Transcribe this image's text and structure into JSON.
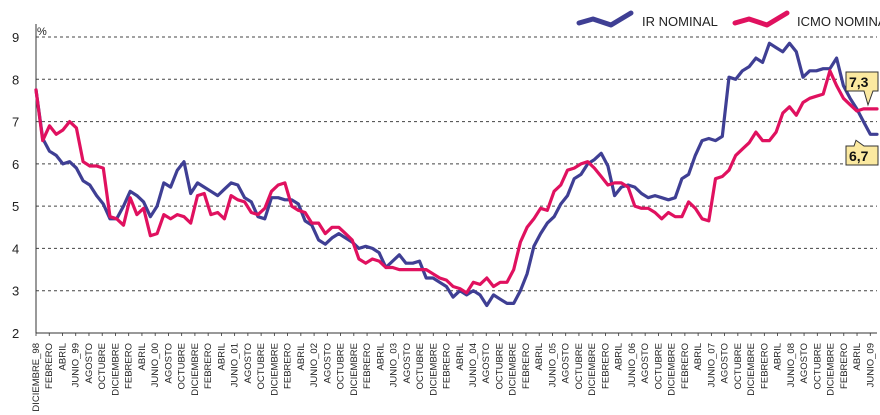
{
  "chart_data": {
    "type": "line",
    "unit_label": "%",
    "ylim": [
      2,
      9
    ],
    "y_ticks": [
      2,
      3,
      4,
      5,
      6,
      7,
      8,
      9
    ],
    "grid": true,
    "legend_position": "top-right",
    "x_tick_labels": [
      "DICIEMBRE_98",
      "FEBRERO",
      "ABRIL",
      "JUNIO_99",
      "AGOSTO",
      "OCTUBRE",
      "DICIEMBRE",
      "FEBRERO",
      "ABRIL",
      "JUNIO_00",
      "AGOSTO",
      "OCTUBRE",
      "DICIEMBRE",
      "FEBRERO",
      "ABRIL",
      "JUNIO_01",
      "AGOSTO",
      "OCTUBRE",
      "DICIEMBRE",
      "FEBRERO",
      "ABRIL",
      "JUNIO_02",
      "AGOSTO",
      "OCTUBRE",
      "DICIEMBRE",
      "FEBRERO",
      "ABRIL",
      "JUNIO_03",
      "AGOSTO",
      "OCTUBRE",
      "DICIEMBRE",
      "FEBRERO",
      "ABRIL",
      "JUNIO_04",
      "AGOSTO",
      "OCTUBRE",
      "DICIEMBRE",
      "FEBRERO",
      "ABRIL",
      "JUNIO_05",
      "AGOSTO",
      "OCTUBRE",
      "DICIEMBRE",
      "FEBRERO",
      "ABRIL",
      "JUNIO_06",
      "AGOSTO",
      "OCTUBRE",
      "DICIEMBRE",
      "FEBRERO",
      "ABRIL",
      "JUNIO_07",
      "AGOSTO",
      "OCTUBRE",
      "DICIEMBRE",
      "FEBRERO",
      "ABRIL",
      "JUNIO_08",
      "AGOSTO",
      "OCTUBRE",
      "DICIEMBRE",
      "FEBRERO",
      "ABRIL",
      "JUNIO_09"
    ],
    "series": [
      {
        "name": "IR NOMINAL",
        "color": "#3f3f94",
        "values": [
          7.75,
          6.6,
          6.3,
          6.2,
          6.0,
          6.05,
          5.9,
          5.6,
          5.5,
          5.25,
          5.05,
          4.7,
          4.7,
          5.0,
          5.35,
          5.25,
          5.1,
          4.75,
          5.0,
          5.55,
          5.45,
          5.85,
          6.05,
          5.3,
          5.55,
          5.45,
          5.35,
          5.25,
          5.4,
          5.55,
          5.5,
          5.2,
          5.1,
          4.75,
          4.7,
          5.2,
          5.2,
          5.15,
          5.15,
          5.05,
          4.65,
          4.55,
          4.2,
          4.1,
          4.25,
          4.35,
          4.25,
          4.15,
          4.0,
          4.05,
          4.0,
          3.9,
          3.55,
          3.7,
          3.85,
          3.65,
          3.65,
          3.7,
          3.3,
          3.3,
          3.2,
          3.1,
          2.85,
          3.0,
          2.9,
          3.0,
          2.9,
          2.65,
          2.9,
          2.8,
          2.7,
          2.7,
          3.0,
          3.4,
          4.05,
          4.35,
          4.6,
          4.75,
          5.05,
          5.25,
          5.65,
          5.75,
          6.0,
          6.1,
          6.25,
          5.95,
          5.25,
          5.45,
          5.5,
          5.45,
          5.3,
          5.2,
          5.25,
          5.2,
          5.15,
          5.2,
          5.65,
          5.75,
          6.2,
          6.55,
          6.6,
          6.55,
          6.65,
          8.05,
          8.0,
          8.2,
          8.3,
          8.5,
          8.4,
          8.85,
          8.75,
          8.65,
          8.85,
          8.65,
          8.05,
          8.2,
          8.2,
          8.25,
          8.25,
          8.5,
          7.85,
          7.55,
          7.3,
          7.0,
          6.7,
          6.7
        ]
      },
      {
        "name": "ICMO NOMINAL",
        "color": "#e0115f",
        "values": [
          7.75,
          6.55,
          6.9,
          6.7,
          6.8,
          7.0,
          6.85,
          6.05,
          5.95,
          5.95,
          5.9,
          4.75,
          4.7,
          4.55,
          5.2,
          4.8,
          4.95,
          4.3,
          4.35,
          4.8,
          4.7,
          4.8,
          4.75,
          4.6,
          5.25,
          5.3,
          4.8,
          4.85,
          4.7,
          5.25,
          5.15,
          5.1,
          4.85,
          4.8,
          4.95,
          5.35,
          5.5,
          5.55,
          5.0,
          4.9,
          4.85,
          4.6,
          4.6,
          4.35,
          4.5,
          4.5,
          4.35,
          4.2,
          3.75,
          3.65,
          3.75,
          3.7,
          3.55,
          3.55,
          3.5,
          3.5,
          3.5,
          3.5,
          3.5,
          3.4,
          3.3,
          3.25,
          3.1,
          3.05,
          2.95,
          3.2,
          3.15,
          3.3,
          3.1,
          3.2,
          3.2,
          3.5,
          4.15,
          4.5,
          4.7,
          4.95,
          4.9,
          5.35,
          5.5,
          5.85,
          5.9,
          6.0,
          6.05,
          5.9,
          5.7,
          5.5,
          5.55,
          5.55,
          5.45,
          5.0,
          4.95,
          4.95,
          4.85,
          4.7,
          4.85,
          4.75,
          4.75,
          5.1,
          4.95,
          4.7,
          4.65,
          5.65,
          5.7,
          5.85,
          6.2,
          6.35,
          6.5,
          6.75,
          6.55,
          6.55,
          6.75,
          7.2,
          7.35,
          7.15,
          7.45,
          7.55,
          7.6,
          7.65,
          8.2,
          7.85,
          7.55,
          7.4,
          7.25,
          7.3,
          7.3,
          7.3
        ]
      }
    ],
    "annotations": [
      {
        "text": "7,3",
        "series": "ICMO NOMINAL",
        "value": 7.3,
        "color": "#e0115f"
      },
      {
        "text": "6,7",
        "series": "IR NOMINAL",
        "value": 6.7,
        "color": "#3f3f94"
      }
    ]
  }
}
